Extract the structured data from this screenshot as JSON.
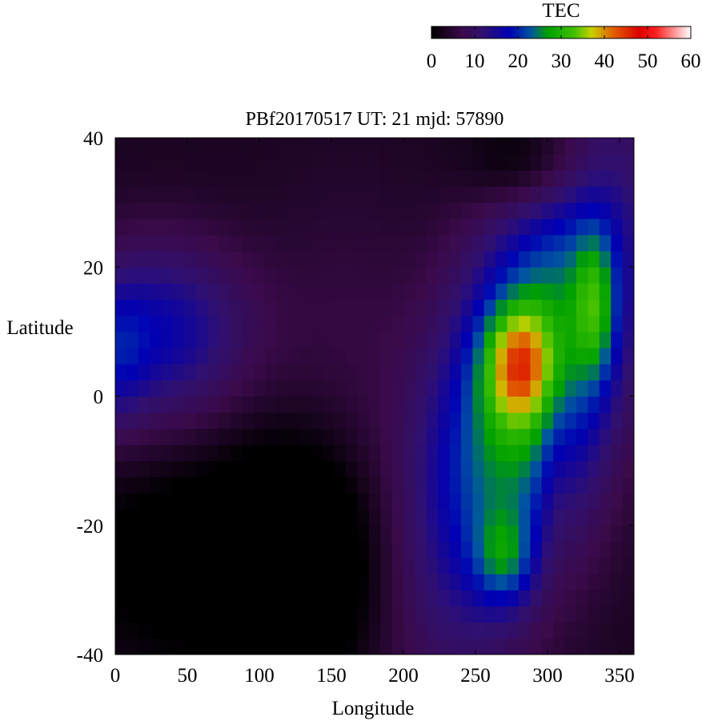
{
  "chart_data": {
    "type": "heatmap",
    "title": "PBf20170517  UT: 21  mjd: 57890",
    "xlabel": "Longitude",
    "ylabel": "Latitude",
    "xlim": [
      0,
      360
    ],
    "ylim": [
      -40,
      40
    ],
    "x_ticks": [
      0,
      50,
      100,
      150,
      200,
      250,
      300,
      350
    ],
    "y_ticks": [
      40,
      20,
      0,
      -20,
      -40
    ],
    "grid": false,
    "colorbar": {
      "label": "TEC",
      "range": [
        0,
        60
      ],
      "ticks": [
        0,
        10,
        20,
        30,
        40,
        50,
        60
      ],
      "placement": "top-right",
      "stops": [
        {
          "value": 0,
          "color": "#000000"
        },
        {
          "value": 7,
          "color": "#3a0a4a"
        },
        {
          "value": 12,
          "color": "#301070"
        },
        {
          "value": 18,
          "color": "#0000b4"
        },
        {
          "value": 23,
          "color": "#0055a0"
        },
        {
          "value": 27,
          "color": "#00a000"
        },
        {
          "value": 33,
          "color": "#40c000"
        },
        {
          "value": 37,
          "color": "#c8d000"
        },
        {
          "value": 42,
          "color": "#e06000"
        },
        {
          "value": 48,
          "color": "#dc0000"
        },
        {
          "value": 52,
          "color": "#ff2020"
        },
        {
          "value": 60,
          "color": "#ffffff"
        }
      ]
    },
    "grid_resolution": {
      "lon_step": 8,
      "lat_step": 2.5
    },
    "features": [
      {
        "region": "dark night-side minimum",
        "lon": 120,
        "lat": -25,
        "tec": 1
      },
      {
        "region": "equatorial anomaly peak",
        "lon": 280,
        "lat": 5,
        "tec": 44
      },
      {
        "region": "southern crest",
        "lon": 275,
        "lat": -25,
        "tec": 34
      },
      {
        "region": "northern crest",
        "lon": 330,
        "lat": 15,
        "tec": 35
      },
      {
        "region": "western blue band",
        "lon": 40,
        "lat": 10,
        "tec": 20
      }
    ]
  }
}
